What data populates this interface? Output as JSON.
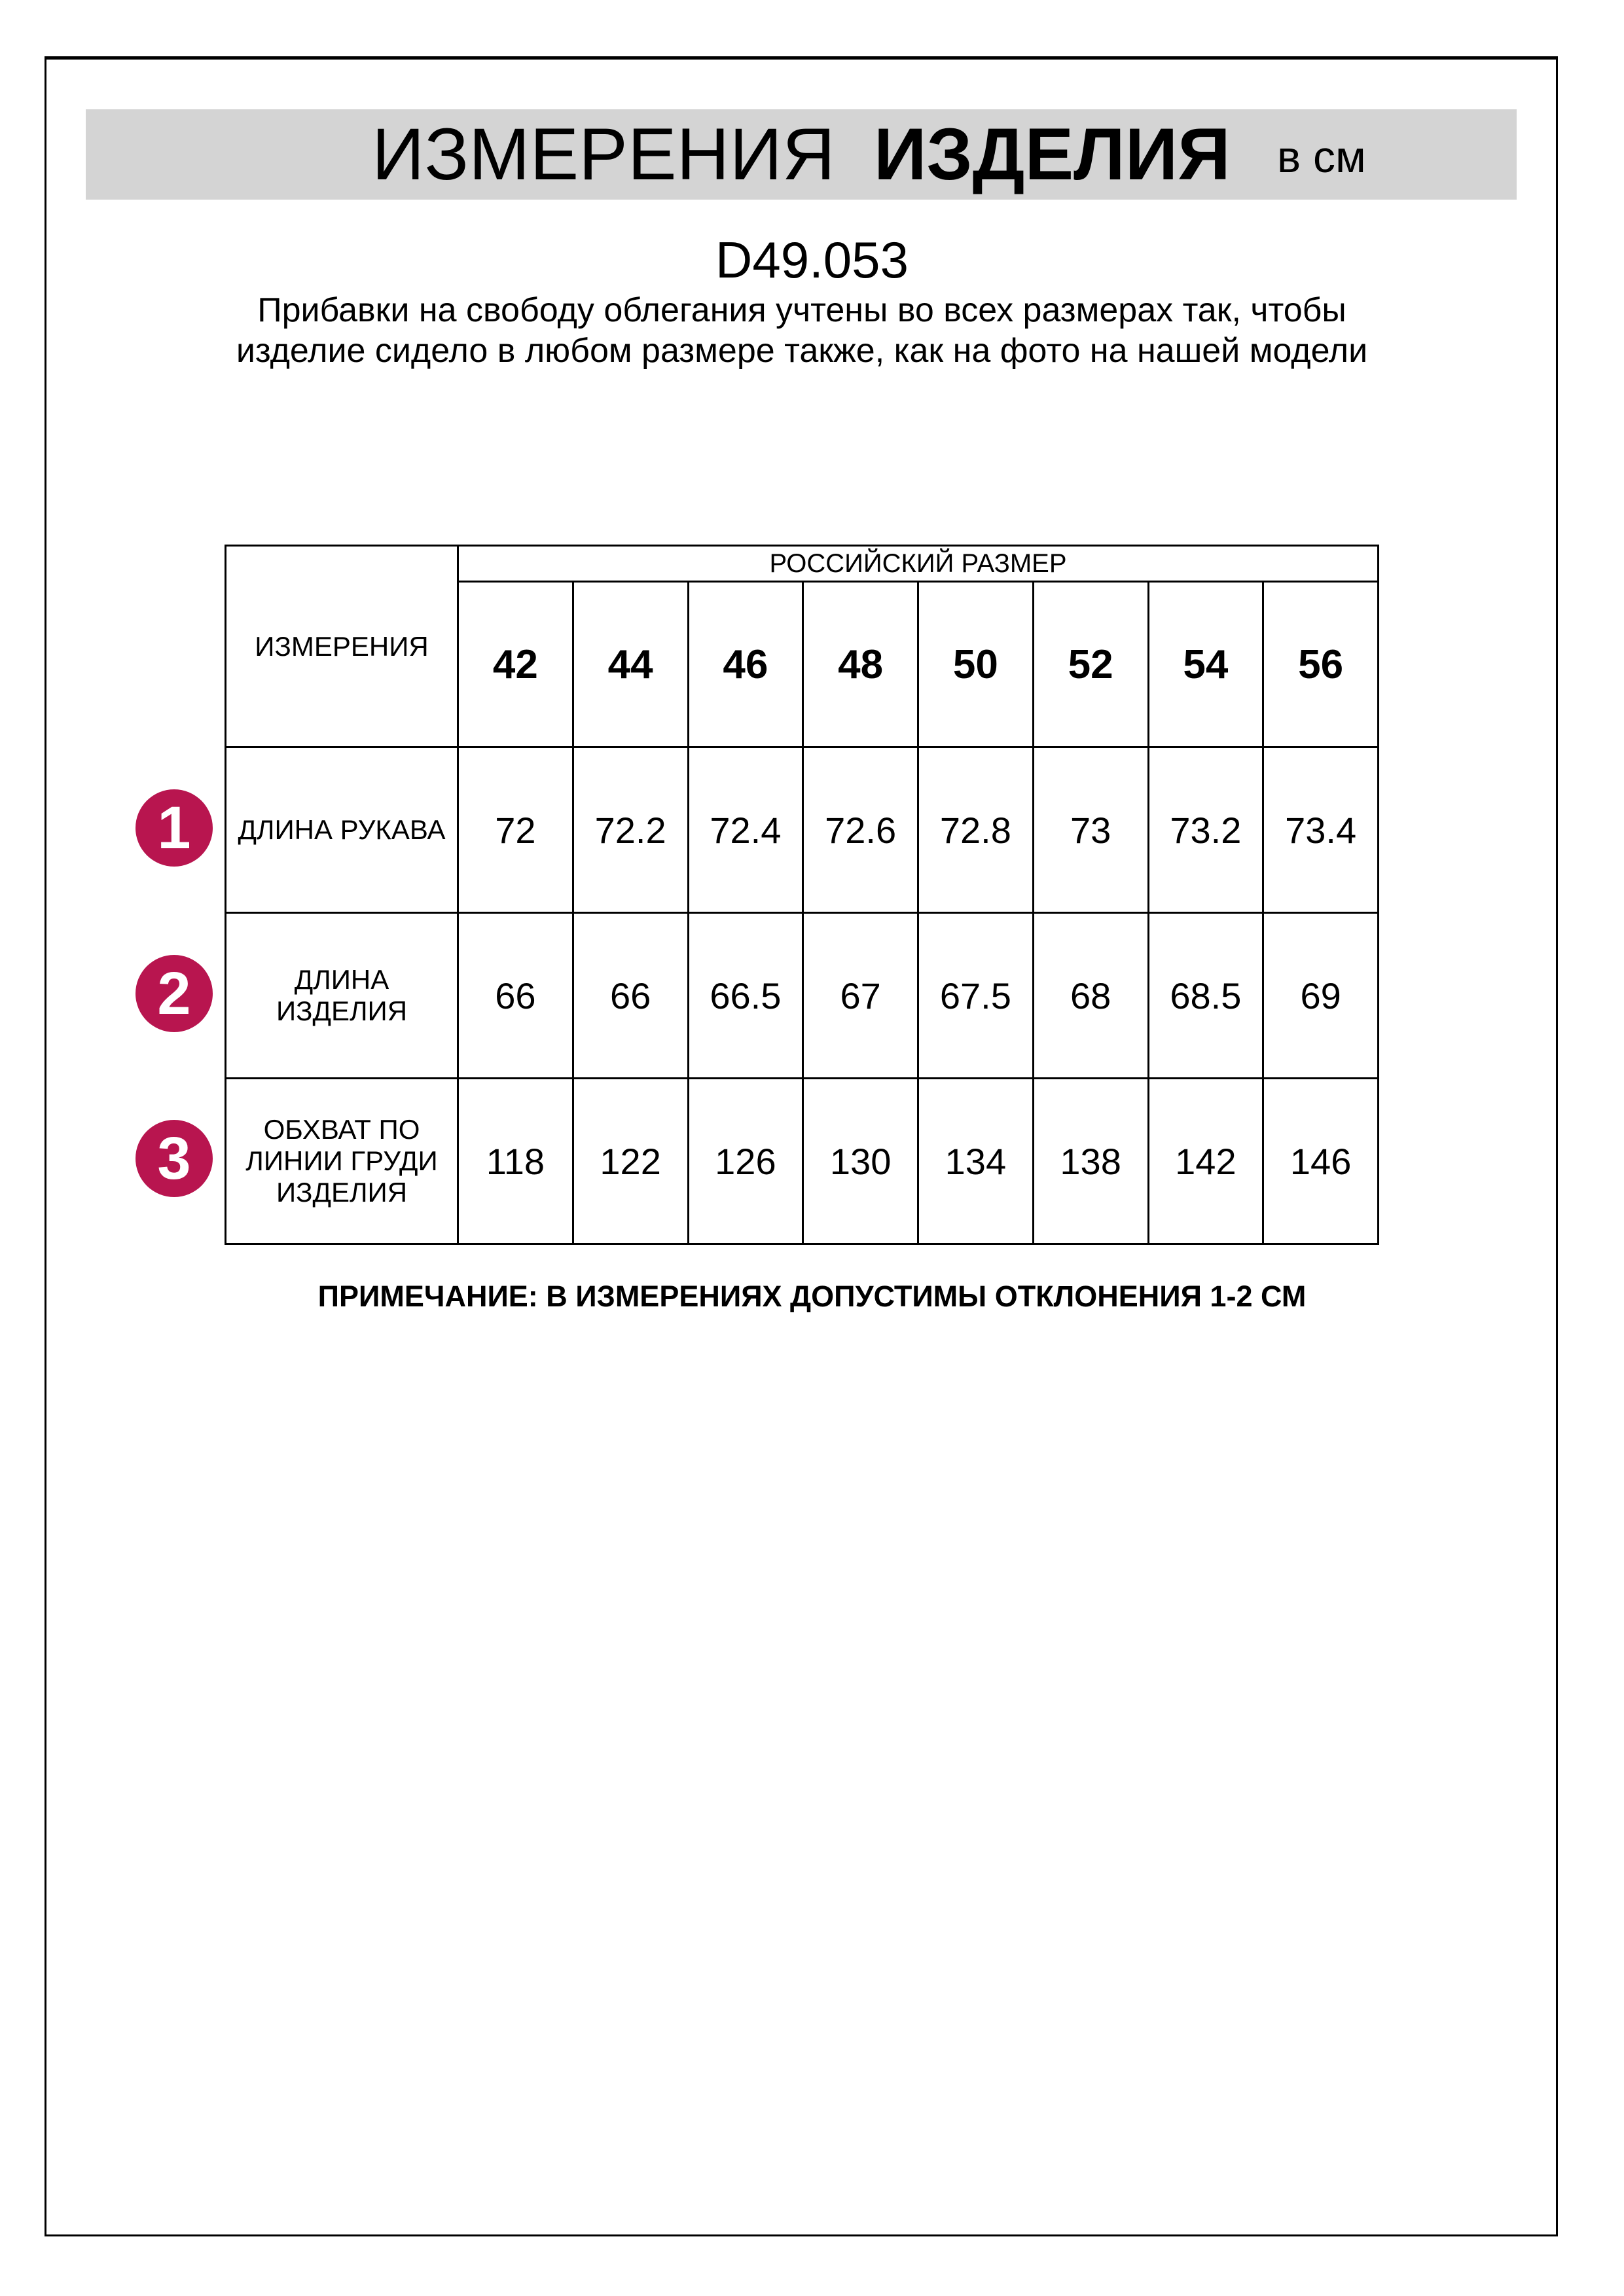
{
  "header": {
    "title_light": "ИЗМЕРЕНИЯ",
    "title_bold": "ИЗДЕЛИЯ",
    "unit": "в см"
  },
  "product_code": "D49.053",
  "description": "Прибавки на свободу облегания учтены во всех размерах так, чтобы изделие сидело в любом размере также, как на фото на нашей модели",
  "table": {
    "corner_label": "ИЗМЕРЕНИЯ",
    "size_group_label": "РОССИЙСКИЙ РАЗМЕР",
    "sizes": [
      "42",
      "44",
      "46",
      "48",
      "50",
      "52",
      "54",
      "56"
    ],
    "rows": [
      {
        "badge": "1",
        "label": "ДЛИНА РУКАВА",
        "values": [
          "72",
          "72.2",
          "72.4",
          "72.6",
          "72.8",
          "73",
          "73.2",
          "73.4"
        ]
      },
      {
        "badge": "2",
        "label": "ДЛИНА ИЗДЕЛИЯ",
        "values": [
          "66",
          "66",
          "66.5",
          "67",
          "67.5",
          "68",
          "68.5",
          "69"
        ]
      },
      {
        "badge": "3",
        "label": "ОБХВАТ ПО ЛИНИИ ГРУДИ ИЗДЕЛИЯ",
        "values": [
          "118",
          "122",
          "126",
          "130",
          "134",
          "138",
          "142",
          "146"
        ]
      }
    ]
  },
  "note": "ПРИМЕЧАНИЕ: В ИЗМЕРЕНИЯХ ДОПУСТИМЫ ОТКЛОНЕНИЯ 1-2 СМ",
  "colors": {
    "badge": "#b8154f",
    "banner": "#d4d4d4"
  }
}
